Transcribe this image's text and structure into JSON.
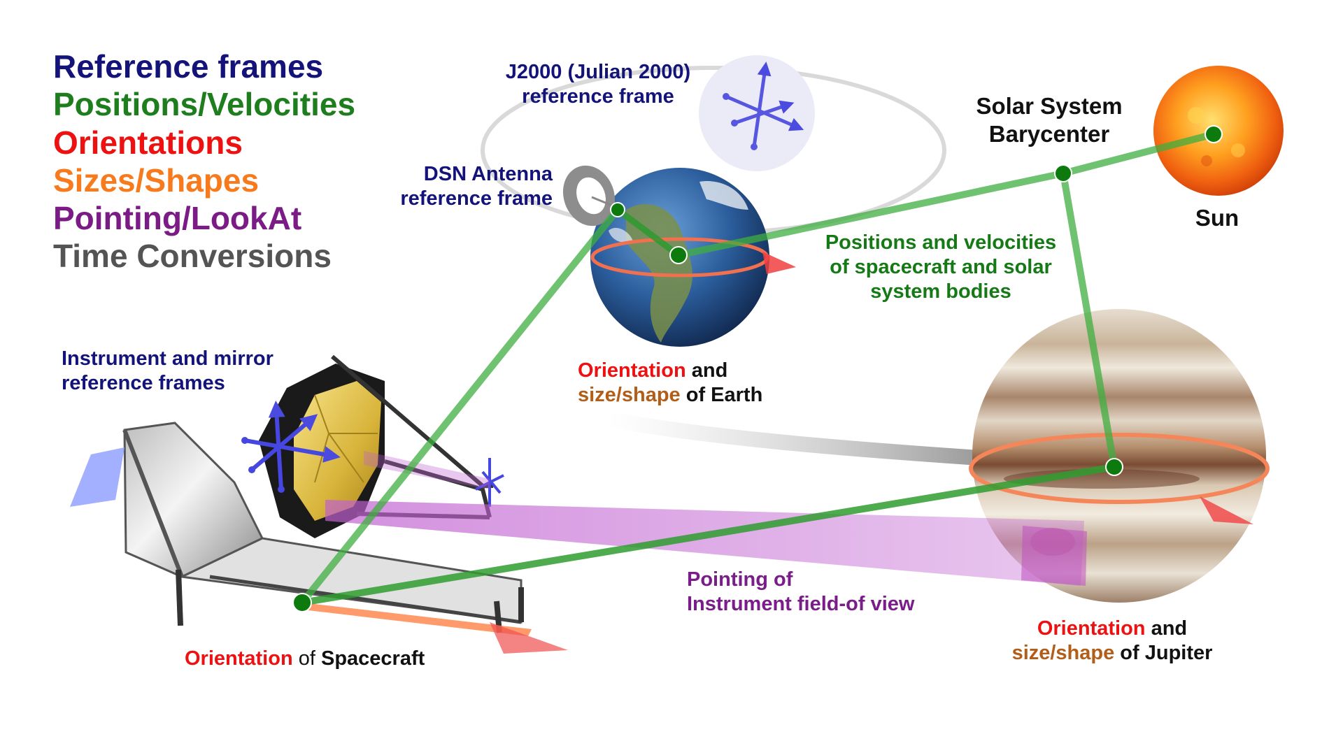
{
  "legend": [
    {
      "label": "Reference frames",
      "color": "#13137a"
    },
    {
      "label": "Positions/Velocities",
      "color": "#1e7e1e"
    },
    {
      "label": "Orientations",
      "color": "#ee1111"
    },
    {
      "label": "Sizes/Shapes",
      "color": "#f77b1c"
    },
    {
      "label": "Pointing/LookAt",
      "color": "#7b1b86"
    },
    {
      "label": "Time Conversions",
      "color": "#545454"
    }
  ],
  "labels": {
    "j2000_line1": "J2000 (Julian 2000)",
    "j2000_line2": "reference frame",
    "dsn_line1": "DSN Antenna",
    "dsn_line2": "reference frame",
    "ssb_line1": "Solar System",
    "ssb_line2": "Barycenter",
    "sun": "Sun",
    "posvel_line1": "Positions and velocities",
    "posvel_line2": "of spacecraft and solar",
    "posvel_line3": "system bodies",
    "instrument_line1": "Instrument and mirror",
    "instrument_line2": "reference frames",
    "earth_orient": "Orientation",
    "earth_and": " and",
    "earth_size": "size/shape",
    "earth_of": " of Earth",
    "pointing_line1": "Pointing of",
    "pointing_line2": "Instrument field-of view",
    "jup_orient": "Orientation",
    "jup_and": " and",
    "jup_size": "size/shape",
    "jup_of": " of Jupiter",
    "sc_orient": "Orientation",
    "sc_of": " of ",
    "sc_name": "Spacecraft"
  }
}
